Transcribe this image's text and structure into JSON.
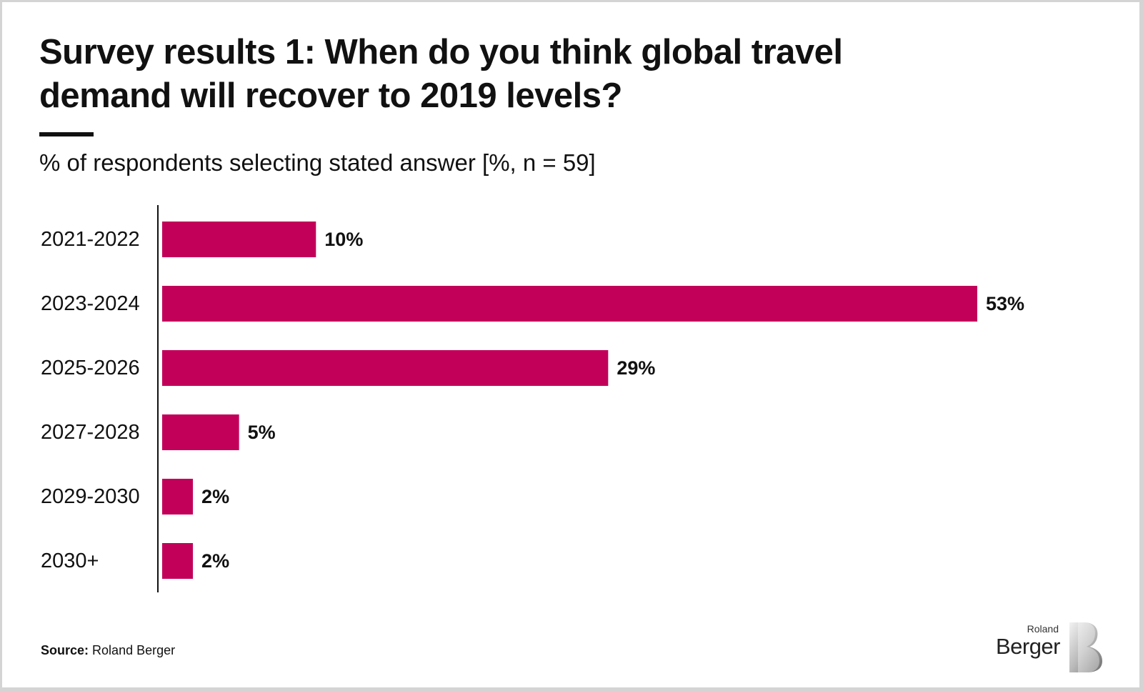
{
  "title": "Survey results 1: When do you think global travel demand will recover to 2019 levels?",
  "subtitle": "% of respondents selecting stated answer [%, n = 59]",
  "source": {
    "label": "Source:",
    "text": "Roland Berger"
  },
  "logo": {
    "top": "Roland",
    "main": "Berger"
  },
  "colors": {
    "bar": "#C2005A",
    "axis": "#111111"
  },
  "chart_data": {
    "type": "bar",
    "orientation": "horizontal",
    "categories": [
      "2021-2022",
      "2023-2024",
      "2025-2026",
      "2027-2028",
      "2029-2030",
      "2030+"
    ],
    "values": [
      10,
      53,
      29,
      5,
      2,
      2
    ],
    "data_labels": [
      "10%",
      "53%",
      "29%",
      "5%",
      "2%",
      "2%"
    ],
    "unit": "%",
    "xlim": [
      0,
      53
    ],
    "grid": false
  }
}
